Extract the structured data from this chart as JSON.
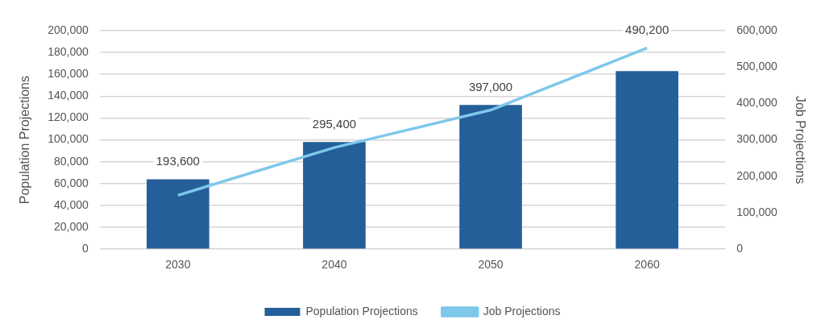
{
  "chart_data": {
    "type": "bar",
    "categories": [
      "2030",
      "2040",
      "2050",
      "2060"
    ],
    "ylabel": "Population Projections",
    "y2label": "Job Projections",
    "series": [
      {
        "name": "Population Projections",
        "color": "#245f99",
        "values": [
          64000,
          98000,
          132000,
          163000
        ]
      },
      {
        "name": "Job Projections",
        "type": "line",
        "axis": "y2",
        "color": "#7ec8ea",
        "values": [
          148000,
          279000,
          382000,
          552000
        ]
      }
    ],
    "ylim": [
      0,
      200000
    ],
    "yticks": [
      0,
      {
        "value": 20000,
        "label": "20,000"
      },
      {
        "value": 40000,
        "label": "40,000"
      },
      {
        "value": 60000,
        "label": "60,000"
      },
      {
        "value": 80000,
        "label": "80,000"
      },
      {
        "value": 100000,
        "label": "100,000"
      },
      {
        "value": 120000,
        "label": "120,000"
      },
      {
        "value": 140000,
        "label": "140,000"
      },
      {
        "value": 160000,
        "label": "160,000"
      },
      {
        "value": 180000,
        "label": "180,000"
      },
      {
        "value": 200000,
        "label": "200,000"
      }
    ],
    "y2lim": [
      0,
      600000
    ],
    "y2ticks": [
      0,
      {
        "value": 100000,
        "label": "100,000"
      },
      {
        "value": 200000,
        "label": "200,000"
      },
      {
        "value": 300000,
        "label": "300,000"
      },
      {
        "value": 400000,
        "label": "400,000"
      },
      {
        "value": 500000,
        "label": "500,000"
      },
      {
        "value": 600000,
        "label": "600,000"
      }
    ],
    "annotations": [
      {
        "text": "193,600",
        "x": "2030",
        "y": 64000
      },
      {
        "text": "295,400",
        "x": "2040",
        "y": 98000
      },
      {
        "text": "397,000",
        "x": "2050",
        "y": 132000
      },
      {
        "text": "490,200",
        "x": "2060",
        "y": 184000
      }
    ],
    "grid": "y",
    "legend": "bottom",
    "marker": "none",
    "line_style": "solid"
  }
}
